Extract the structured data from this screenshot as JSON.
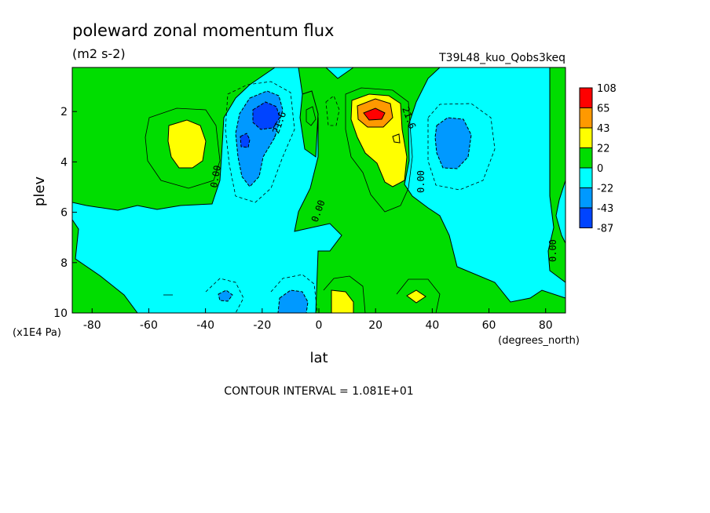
{
  "chart_data": {
    "type": "contour",
    "title": "poleward zonal momentum flux",
    "units": "(m2 s-2)",
    "run_label": "T39L48_kuo_Qobs3keq",
    "xlabel": "lat",
    "x_units": "(degrees_north)",
    "ylabel": "plev",
    "y_units": "(x1E4 Pa)",
    "xlim": [
      -87,
      87
    ],
    "ylim": [
      10,
      0.25
    ],
    "x_ticks": [
      -80,
      -60,
      -40,
      -20,
      0,
      20,
      40,
      60,
      80
    ],
    "x_tick_labels": [
      "-80",
      "-60",
      "-40",
      "-20",
      "0",
      "20",
      "40",
      "60",
      "80"
    ],
    "y_ticks": [
      2,
      4,
      6,
      8,
      10
    ],
    "y_tick_labels": [
      "2",
      "4",
      "6",
      "8",
      "10"
    ],
    "contour_labels": [
      {
        "text": "0.00",
        "lat": -37,
        "plev": 4.6
      },
      {
        "text": "-21.6",
        "lat": -15,
        "plev": 2.5
      },
      {
        "text": "0.00",
        "lat": -1,
        "plev": 6.1
      },
      {
        "text": "21.6",
        "lat": 31,
        "plev": 2.2
      },
      {
        "text": "0.00",
        "lat": 37,
        "plev": 4.6
      },
      {
        "text": "0.00",
        "lat": 83,
        "plev": 7.6
      }
    ],
    "colorbar": {
      "labels": [
        "108",
        "65",
        "43",
        "22",
        "0",
        "-22",
        "-43",
        "-87"
      ],
      "colors": [
        "#ff0000",
        "#ff9900",
        "#ffff00",
        "#00dd00",
        "#00ffff",
        "#0099ff",
        "#0044ff"
      ]
    },
    "footer": "CONTOUR INTERVAL = 1.081E+01"
  }
}
